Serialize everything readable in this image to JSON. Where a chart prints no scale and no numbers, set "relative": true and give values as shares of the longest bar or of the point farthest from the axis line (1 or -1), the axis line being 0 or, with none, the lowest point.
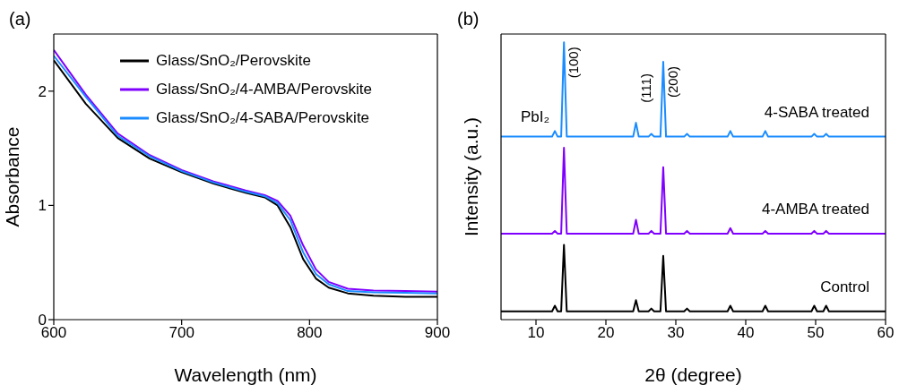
{
  "chart_data": [
    {
      "type": "line",
      "title": "(a)",
      "xlabel": "Wavelength (nm)",
      "ylabel": "Absorbance",
      "x": [
        600,
        625,
        650,
        675,
        700,
        725,
        750,
        765,
        775,
        785,
        795,
        805,
        815,
        830,
        850,
        875,
        900
      ],
      "series": [
        {
          "name": "Glass/SnO₂/Perovskite",
          "color": "#000000",
          "values": [
            2.27,
            1.89,
            1.59,
            1.41,
            1.29,
            1.19,
            1.11,
            1.07,
            1.0,
            0.81,
            0.53,
            0.36,
            0.28,
            0.23,
            0.21,
            0.2,
            0.2
          ]
        },
        {
          "name": "Glass/SnO₂/4-AMBA/Perovskite",
          "color": "#8000ff",
          "values": [
            2.36,
            1.97,
            1.63,
            1.44,
            1.31,
            1.21,
            1.13,
            1.09,
            1.04,
            0.91,
            0.65,
            0.44,
            0.33,
            0.27,
            0.255,
            0.25,
            0.245
          ]
        },
        {
          "name": "Glass/SnO₂/4-SABA/Perovskite",
          "color": "#1a8cff",
          "values": [
            2.31,
            1.95,
            1.61,
            1.43,
            1.3,
            1.2,
            1.12,
            1.08,
            1.02,
            0.87,
            0.59,
            0.4,
            0.31,
            0.25,
            0.24,
            0.235,
            0.23
          ]
        }
      ],
      "xlim": [
        600,
        900
      ],
      "xticks": [
        600,
        700,
        800,
        900
      ],
      "ylim": [
        0,
        2.5
      ],
      "yticks": [
        0,
        1,
        2
      ],
      "grid": false,
      "legend": "top right",
      "marker": "none",
      "line_style": "solid"
    },
    {
      "type": "line",
      "title": "(b)",
      "xlabel": "2θ (degree)",
      "ylabel": "Intensity (a.u.)",
      "relative": true,
      "x": [
        5,
        12.3,
        12.7,
        13.1,
        13.6,
        14,
        14.4,
        23.9,
        24.3,
        24.7,
        26.1,
        26.5,
        26.9,
        27.8,
        28.2,
        28.6,
        31.2,
        31.6,
        32,
        37.4,
        37.8,
        38.2,
        42.4,
        42.8,
        43.2,
        49.4,
        49.8,
        50.2,
        51.1,
        51.5,
        51.9,
        60
      ],
      "series": [
        {
          "name": "4-SABA treated",
          "color": "#1a8cff",
          "values": [
            0.66,
            0.66,
            0.68,
            0.66,
            0.66,
            1.0,
            0.66,
            0.66,
            0.71,
            0.66,
            0.66,
            0.67,
            0.66,
            0.66,
            0.93,
            0.66,
            0.66,
            0.67,
            0.66,
            0.66,
            0.68,
            0.66,
            0.66,
            0.68,
            0.66,
            0.66,
            0.67,
            0.66,
            0.66,
            0.67,
            0.66,
            0.66
          ]
        },
        {
          "name": "4-AMBA treated",
          "color": "#8000ff",
          "values": [
            0.31,
            0.31,
            0.32,
            0.31,
            0.31,
            0.62,
            0.31,
            0.31,
            0.36,
            0.31,
            0.31,
            0.32,
            0.31,
            0.31,
            0.55,
            0.31,
            0.31,
            0.32,
            0.31,
            0.31,
            0.33,
            0.31,
            0.31,
            0.32,
            0.31,
            0.31,
            0.32,
            0.31,
            0.31,
            0.32,
            0.31,
            0.31
          ]
        },
        {
          "name": "Control",
          "color": "#000000",
          "values": [
            0.03,
            0.03,
            0.05,
            0.03,
            0.03,
            0.27,
            0.03,
            0.03,
            0.07,
            0.03,
            0.03,
            0.04,
            0.03,
            0.03,
            0.23,
            0.03,
            0.03,
            0.04,
            0.03,
            0.03,
            0.05,
            0.03,
            0.03,
            0.05,
            0.03,
            0.03,
            0.05,
            0.03,
            0.03,
            0.05,
            0.03,
            0.03
          ]
        }
      ],
      "xlim": [
        5,
        60
      ],
      "xticks": [
        10,
        20,
        30,
        40,
        50,
        60
      ],
      "annotations": [
        {
          "text": "(100)",
          "x": 14,
          "y": 1.0
        },
        {
          "text": "(111)",
          "x": 24.3,
          "y": 0.71
        },
        {
          "text": "(200)",
          "x": 28.2,
          "y": 0.93
        },
        {
          "text": "PbI₂",
          "x": 12.7,
          "y": 0.68
        }
      ],
      "tick_labels": "x",
      "grid": false,
      "legend": false,
      "marker": "none",
      "line_style": "solid"
    }
  ]
}
